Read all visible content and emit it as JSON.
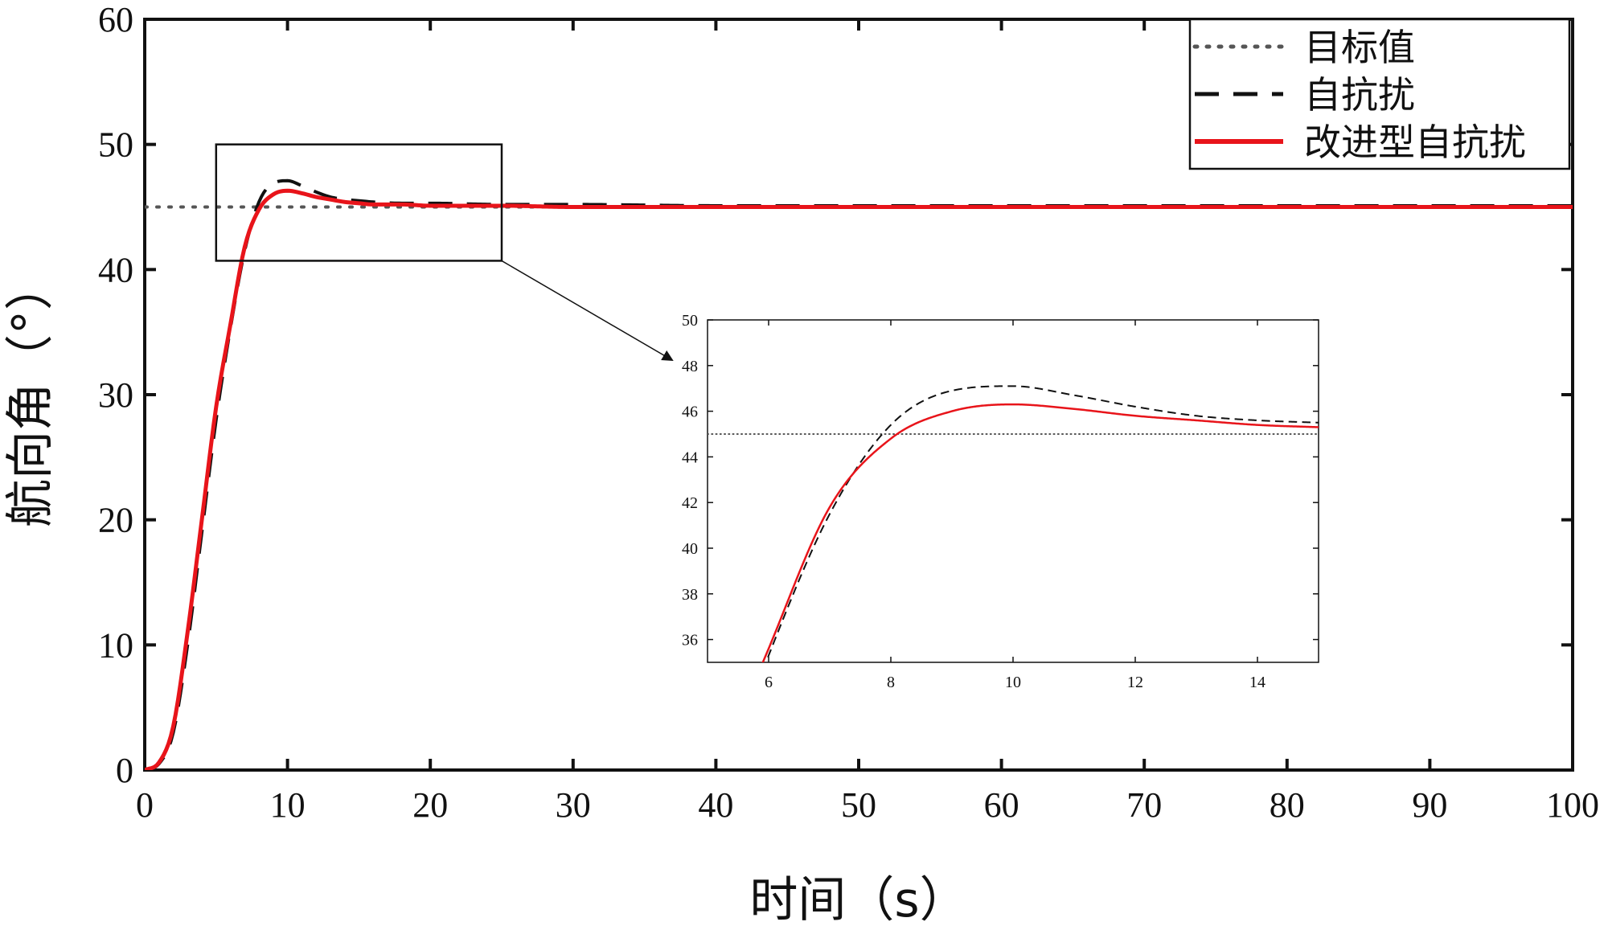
{
  "chart_data": {
    "type": "line",
    "title": "",
    "xlabel": "时间（s）",
    "ylabel": "航向角（°）",
    "xlim": [
      0,
      100
    ],
    "ylim": [
      0,
      60
    ],
    "x_ticks": [
      "0",
      "10",
      "20",
      "30",
      "40",
      "50",
      "60",
      "70",
      "80",
      "90",
      "100"
    ],
    "y_ticks": [
      "0",
      "10",
      "20",
      "30",
      "40",
      "50",
      "60"
    ],
    "grid": false,
    "legend_position": "top-right",
    "series": [
      {
        "name": "目标值",
        "style": "dotted",
        "color": "#555555",
        "x": [
          0,
          100
        ],
        "y": [
          45,
          45
        ]
      },
      {
        "name": "自抗扰",
        "style": "dashed",
        "color": "#111111",
        "x": [
          0,
          1,
          2,
          3,
          4,
          5,
          6,
          7,
          8,
          9,
          10,
          11,
          12,
          13,
          14,
          15,
          16,
          18,
          20,
          25,
          30,
          40,
          50,
          60,
          70,
          80,
          90,
          100
        ],
        "y": [
          0,
          0.5,
          3,
          10,
          19,
          28,
          35.3,
          41.5,
          45.4,
          46.9,
          47.1,
          46.7,
          46.2,
          45.8,
          45.6,
          45.5,
          45.4,
          45.3,
          45.3,
          45.2,
          45.2,
          45.1,
          45.1,
          45.1,
          45.1,
          45.1,
          45.1,
          45.1
        ]
      },
      {
        "name": "改进型自抗扰",
        "style": "solid",
        "color": "#e8141a",
        "x": [
          0,
          1,
          2,
          3,
          4,
          5,
          6,
          7,
          8,
          9,
          10,
          11,
          12,
          13,
          14,
          15,
          16,
          18,
          20,
          25,
          30,
          40,
          50,
          60,
          70,
          80,
          90,
          100
        ],
        "y": [
          0,
          0.6,
          3.5,
          11,
          20,
          29,
          35.6,
          41.8,
          44.8,
          46.0,
          46.3,
          46.1,
          45.8,
          45.6,
          45.4,
          45.3,
          45.2,
          45.2,
          45.1,
          45.1,
          45.0,
          45.0,
          45.0,
          45.0,
          45.0,
          45.0,
          45.0,
          45.0
        ]
      }
    ],
    "zoom_box": {
      "xlim": [
        5,
        25
      ],
      "ylim": [
        40.7,
        50
      ]
    },
    "inset": {
      "xlim": [
        5,
        15
      ],
      "ylim": [
        35,
        50
      ],
      "x_ticks": [
        "6",
        "8",
        "10",
        "12",
        "14"
      ],
      "y_ticks": [
        "36",
        "38",
        "40",
        "42",
        "44",
        "46",
        "48",
        "50"
      ]
    }
  }
}
